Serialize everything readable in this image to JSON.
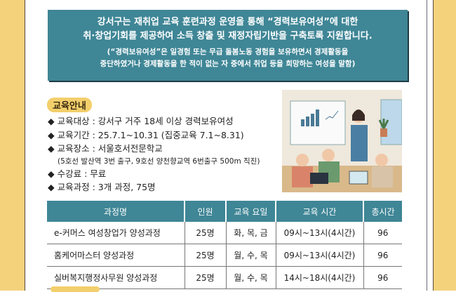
{
  "intro": {
    "line1": "강서구는 재취업 교육 훈련과정 운영을 통해 “경력보유여성”에 대한",
    "line2": "취·창업기회를 제공하여 소득 창출 및 재정자립기반을 구축토록 지원합니다.",
    "note1": "(“경력보유여성”은  일경험 또는 무급 돌봄노동 경험을 보유하면서 경제활동을",
    "note2": "중단하였거나 경제활동을 한 적이 없는 자 중에서 취업 등을 희망하는 여성을 말함)"
  },
  "section_title": "교육안내",
  "bullet_glyph": "◆",
  "info": [
    "교육대상 : 강서구 거주 18세 이상 경력보유여성",
    "교육기간 : 25.7.1~10.31 (집중교육 7.1~8.31)",
    "교육장소 : 서울호서전문학교",
    "수강료 : 무료",
    "교육과정 : 3개 과정, 75명"
  ],
  "location_note": "(5호선 발산역 3번 출구, 9호선 양천향교역 6번출구 500m 직진)",
  "table": {
    "headers": [
      "과정명",
      "인원",
      "교육 요일",
      "교육 시간",
      "총시간"
    ],
    "rows": [
      [
        "e-커머스 여성창업가 양성과정",
        "25명",
        "화, 목, 금",
        "09시~13시(4시간)",
        "96"
      ],
      [
        "홈케어마스터 양성과정",
        "25명",
        "월, 수, 목",
        "09시~13시(4시간)",
        "96"
      ],
      [
        "실버복지행정사무원 양성과정",
        "25명",
        "월, 수, 목",
        "14시~18시(4시간)",
        "96"
      ]
    ]
  },
  "colors": {
    "teal": "#3f8696",
    "yellow": "#f4d27c"
  }
}
